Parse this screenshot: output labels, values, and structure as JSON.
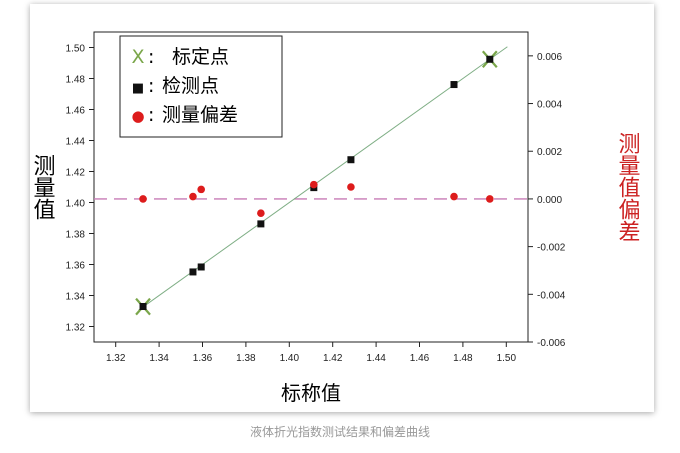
{
  "caption": "液体折光指数测试结果和偏差曲线",
  "colors": {
    "calibration": "#7aa64a",
    "measured": "#111111",
    "deviation": "#dd1c1c",
    "fit_line": "#7fae85",
    "zero_line": "#c77ab5",
    "right_axis_title": "#cc2222"
  },
  "chart_data": {
    "type": "scatter",
    "xlabel": "标称值",
    "ylabel": "测量值",
    "y2label": "测量值偏差",
    "xlim": [
      1.31,
      1.51
    ],
    "ylim": [
      1.31,
      1.51
    ],
    "y2lim": [
      -0.006,
      0.007
    ],
    "x_ticks": [
      1.32,
      1.34,
      1.36,
      1.38,
      1.4,
      1.42,
      1.44,
      1.46,
      1.48,
      1.5
    ],
    "x_tick_labels": [
      "1.32",
      "1.34",
      "1.36",
      "1.38",
      "1.40",
      "1.42",
      "1.44",
      "1.46",
      "1.48",
      "1.50"
    ],
    "y_ticks": [
      1.32,
      1.34,
      1.36,
      1.38,
      1.4,
      1.42,
      1.44,
      1.46,
      1.48,
      1.5
    ],
    "y_tick_labels": [
      "1.32",
      "1.34",
      "1.36",
      "1.38",
      "1.40",
      "1.42",
      "1.44",
      "1.46",
      "1.48",
      "1.50"
    ],
    "y2_ticks": [
      -0.006,
      -0.004,
      -0.002,
      0.0,
      0.002,
      0.004,
      0.006
    ],
    "y2_tick_labels": [
      "-0.006",
      "-0.004",
      "-0.002",
      "0.000",
      "0.002",
      "0.004",
      "0.006"
    ],
    "legend": {
      "placement": "top-left",
      "entries": [
        {
          "marker": "X",
          "sep": ":",
          "label": "标定点"
        },
        {
          "marker": "■",
          "sep": ":",
          "label": "检测点"
        },
        {
          "marker": "●",
          "sep": ":",
          "label": "测量偏差"
        }
      ]
    },
    "series": [
      {
        "marker": "x",
        "axis": "left",
        "points": [
          [
            1.3326,
            1.3328
          ],
          [
            1.4924,
            1.4924
          ]
        ]
      },
      {
        "marker": "square",
        "axis": "left",
        "points": [
          [
            1.3326,
            1.3329
          ],
          [
            1.3556,
            1.3552
          ],
          [
            1.3594,
            1.3584
          ],
          [
            1.3869,
            1.3862
          ],
          [
            1.4113,
            1.4096
          ],
          [
            1.4284,
            1.4276
          ],
          [
            1.4759,
            1.4761
          ],
          [
            1.4924,
            1.4924
          ]
        ]
      },
      {
        "marker": "circle",
        "axis": "right",
        "points": [
          [
            1.3326,
            0.0
          ],
          [
            1.3556,
            0.0001
          ],
          [
            1.3594,
            0.0004
          ],
          [
            1.3869,
            -0.0006
          ],
          [
            1.4113,
            0.0006
          ],
          [
            1.4284,
            0.0005
          ],
          [
            1.4759,
            0.0001
          ],
          [
            1.4924,
            0.0
          ]
        ]
      }
    ],
    "fit_line": {
      "axis": "left",
      "points": [
        [
          1.3306,
          1.3306
        ],
        [
          1.5005,
          1.5005
        ]
      ]
    },
    "zero_line": {
      "axis": "right",
      "value": 0.0,
      "style": "dashed"
    }
  }
}
